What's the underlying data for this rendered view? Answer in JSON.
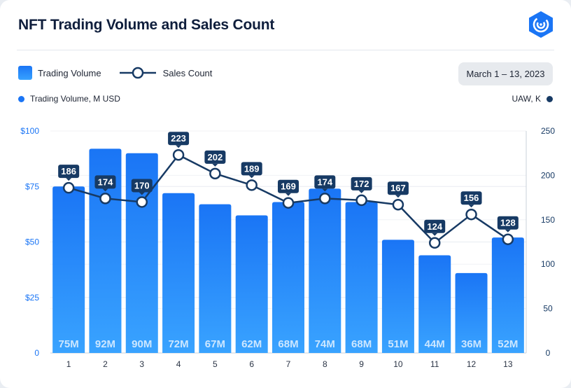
{
  "header": {
    "title": "NFT Trading Volume and Sales Count",
    "logo_icon": "dappradar-logo-icon"
  },
  "legend": {
    "bar_label": "Trading Volume",
    "line_label": "Sales Count"
  },
  "date_range": "March 1 – 13, 2023",
  "axis": {
    "left_title": "Trading Volume, M USD",
    "right_title": "UAW, K"
  },
  "colors": {
    "bar_top": "#1a75f5",
    "bar_bottom": "#39a3ff",
    "line": "#173a64",
    "left_axis_text": "#1a75f5",
    "right_axis_text": "#173a64"
  },
  "chart_data": {
    "type": "bar",
    "categories": [
      "1",
      "2",
      "3",
      "4",
      "5",
      "6",
      "7",
      "8",
      "9",
      "10",
      "11",
      "12",
      "13"
    ],
    "series": [
      {
        "name": "Trading Volume",
        "axis": "left",
        "values": [
          75,
          92,
          90,
          72,
          67,
          62,
          68,
          74,
          68,
          51,
          44,
          36,
          52
        ],
        "bar_labels": [
          "75M",
          "92M",
          "90M",
          "72M",
          "67M",
          "62M",
          "68M",
          "74M",
          "68M",
          "51M",
          "44M",
          "36M",
          "52M"
        ]
      },
      {
        "name": "Sales Count",
        "type": "line",
        "axis": "right",
        "values": [
          186,
          174,
          170,
          223,
          202,
          189,
          169,
          174,
          172,
          167,
          124,
          156,
          128
        ]
      }
    ],
    "ylim_left": [
      0,
      100
    ],
    "yticks_left": [
      "$100",
      "$75",
      "$50",
      "$25",
      "0"
    ],
    "ylim_right": [
      0,
      250
    ],
    "yticks_right": [
      "250",
      "200",
      "150",
      "100",
      "50",
      "0"
    ],
    "grid": true
  }
}
